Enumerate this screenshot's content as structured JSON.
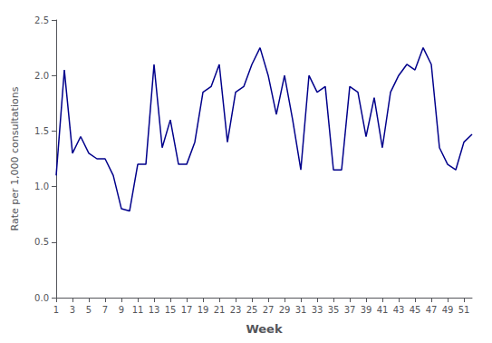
{
  "chart_data": {
    "type": "line",
    "xlabel": "Week",
    "ylabel": "Rate per 1,000 consultations",
    "x": [
      1,
      2,
      3,
      4,
      5,
      6,
      7,
      8,
      9,
      10,
      11,
      12,
      13,
      14,
      15,
      16,
      17,
      18,
      19,
      20,
      21,
      22,
      23,
      24,
      25,
      26,
      27,
      28,
      29,
      30,
      31,
      32,
      33,
      34,
      35,
      36,
      37,
      38,
      39,
      40,
      41,
      42,
      43,
      44,
      45,
      46,
      47,
      48,
      49,
      50,
      51,
      52
    ],
    "values": [
      1.1,
      2.05,
      1.3,
      1.45,
      1.3,
      1.25,
      1.25,
      1.1,
      0.8,
      0.78,
      1.2,
      1.2,
      2.1,
      1.35,
      1.6,
      1.2,
      1.2,
      1.4,
      1.85,
      1.9,
      2.1,
      1.4,
      1.85,
      1.9,
      2.1,
      2.25,
      2.0,
      1.65,
      2.0,
      1.6,
      1.15,
      2.0,
      1.85,
      1.9,
      1.15,
      1.15,
      1.9,
      1.85,
      1.45,
      1.8,
      1.35,
      1.85,
      2.0,
      2.1,
      2.05,
      2.25,
      2.1,
      1.35,
      1.2,
      1.15,
      1.4,
      1.47
    ],
    "color": "#00008B",
    "xlim": [
      1,
      52
    ],
    "xticks": [
      1,
      3,
      5,
      7,
      9,
      11,
      13,
      15,
      17,
      19,
      21,
      23,
      25,
      27,
      29,
      31,
      33,
      35,
      37,
      39,
      41,
      43,
      45,
      47,
      49,
      51
    ],
    "ylim": [
      0.0,
      2.5
    ],
    "yticks": [
      {
        "value": 0.0,
        "label": "0.0"
      },
      0.5,
      {
        "value": 1.0,
        "label": "1.0"
      },
      1.5,
      {
        "value": 2.0,
        "label": "2.0"
      },
      2.5
    ],
    "grid": false
  }
}
